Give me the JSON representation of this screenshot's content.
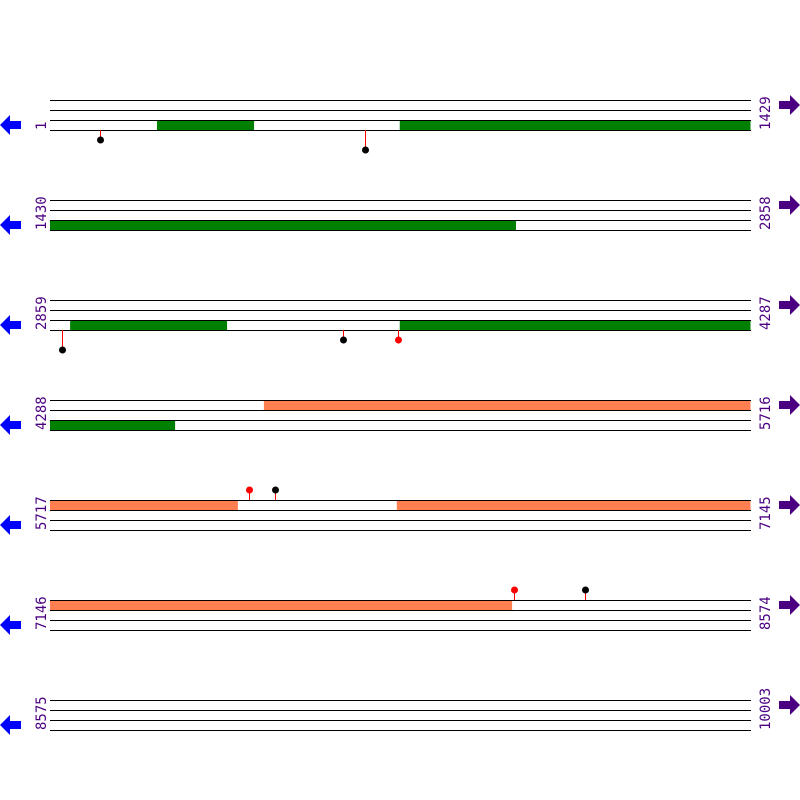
{
  "colors": {
    "track_line": "#000000",
    "feature_green": "#008000",
    "feature_orange": "#ff7f50",
    "marker_stick": "#ff0000",
    "marker_red": "#ff0000",
    "marker_black": "#000000",
    "left_arrow": "#0000ff",
    "right_arrow": "#4b0082",
    "label": "#4b0082"
  },
  "icons": {
    "left": "arrow-left-icon",
    "right": "arrow-right-icon"
  },
  "bp_per_row": 1429,
  "rows": [
    {
      "start": "1",
      "end": "1429",
      "features": [
        {
          "track": 3,
          "from": 219,
          "to": 417,
          "color": "green"
        },
        {
          "track": 3,
          "from": 714,
          "to": 1429,
          "color": "green"
        }
      ],
      "markers": [
        {
          "pos": 103,
          "side": "below",
          "lane": 1,
          "color": "black"
        },
        {
          "pos": 643,
          "side": "below",
          "lane": 2,
          "color": "black"
        }
      ]
    },
    {
      "start": "1430",
      "end": "2858",
      "features": [
        {
          "track": 3,
          "from": 1430,
          "to": 2380,
          "color": "green"
        }
      ],
      "markers": []
    },
    {
      "start": "2859",
      "end": "4287",
      "features": [
        {
          "track": 3,
          "from": 2900,
          "to": 3220,
          "color": "green"
        },
        {
          "track": 3,
          "from": 3572,
          "to": 4287,
          "color": "green"
        }
      ],
      "markers": [
        {
          "pos": 2883,
          "side": "below",
          "lane": 2,
          "color": "black"
        },
        {
          "pos": 3456,
          "side": "below",
          "lane": 1,
          "color": "black"
        },
        {
          "pos": 3568,
          "side": "below",
          "lane": 1,
          "color": "red"
        }
      ]
    },
    {
      "start": "4288",
      "end": "5716",
      "features": [
        {
          "track": 1,
          "from": 4724,
          "to": 5716,
          "color": "orange"
        },
        {
          "track": 3,
          "from": 4288,
          "to": 4543,
          "color": "green"
        }
      ],
      "markers": []
    },
    {
      "start": "5717",
      "end": "7145",
      "features": [
        {
          "track": 1,
          "from": 5717,
          "to": 6100,
          "color": "orange"
        },
        {
          "track": 1,
          "from": 6424,
          "to": 7145,
          "color": "orange"
        }
      ],
      "markers": [
        {
          "pos": 6123,
          "side": "above",
          "lane": 1,
          "color": "red"
        },
        {
          "pos": 6176,
          "side": "above",
          "lane": 1,
          "color": "black"
        }
      ]
    },
    {
      "start": "7146",
      "end": "8574",
      "features": [
        {
          "track": 1,
          "from": 7146,
          "to": 8088,
          "color": "orange"
        }
      ],
      "markers": [
        {
          "pos": 8092,
          "side": "above",
          "lane": 1,
          "color": "red"
        },
        {
          "pos": 8236,
          "side": "above",
          "lane": 1,
          "color": "black"
        }
      ]
    },
    {
      "start": "8575",
      "end": "10003",
      "features": [],
      "markers": []
    }
  ]
}
